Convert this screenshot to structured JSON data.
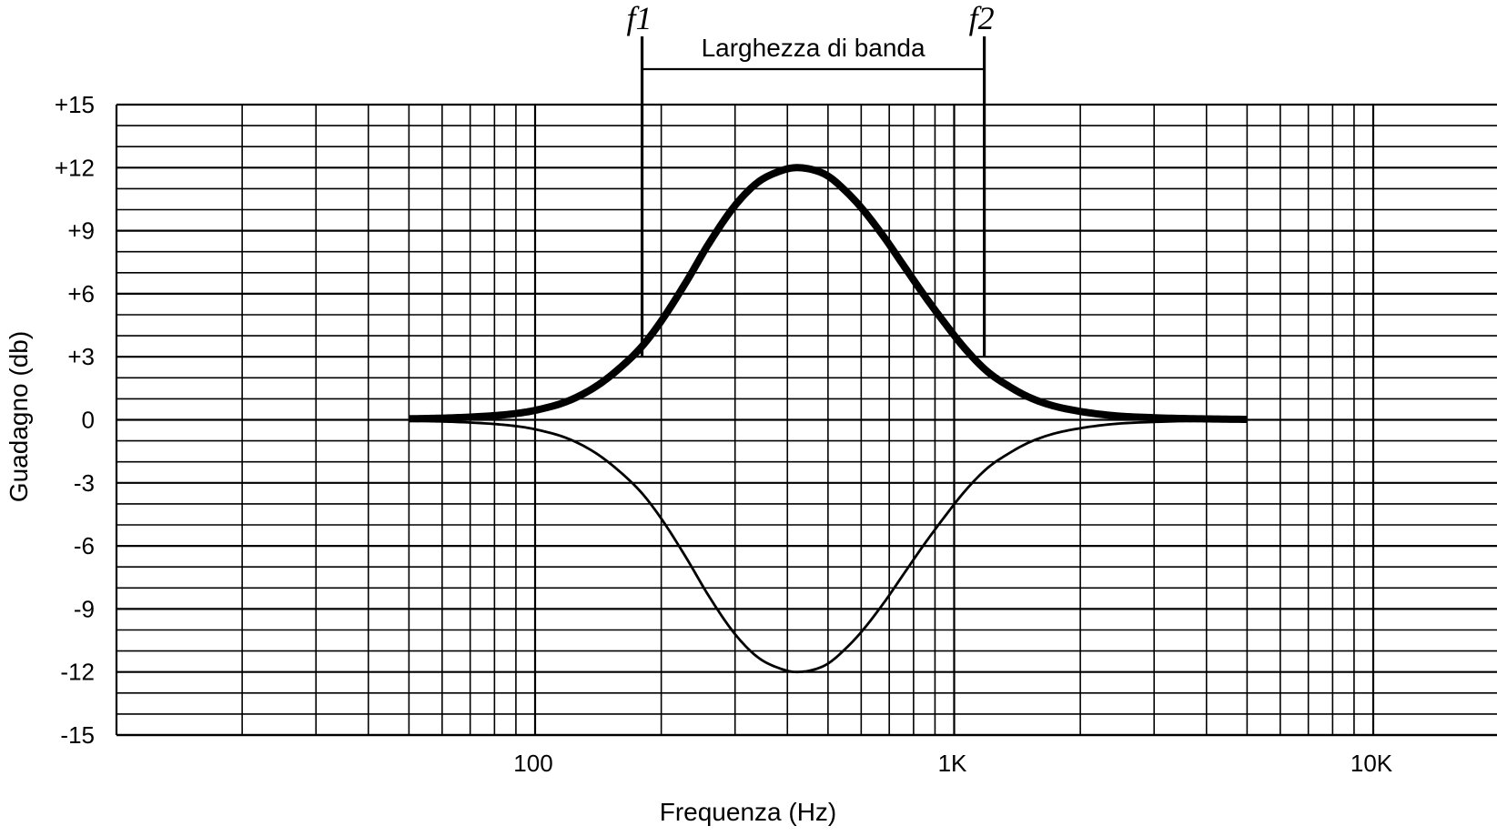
{
  "chart_data": {
    "type": "line",
    "title": "",
    "xlabel": "Frequenza (Hz)",
    "ylabel": "Guadagno (db)",
    "x_scale": "log",
    "xlim": [
      20,
      20000
    ],
    "ylim": [
      -15,
      15
    ],
    "grid": true,
    "x_tick_labels": [
      {
        "value": 100,
        "label": "100"
      },
      {
        "value": 1000,
        "label": "1K"
      },
      {
        "value": 10000,
        "label": "10K"
      }
    ],
    "y_tick_labels": [
      {
        "value": 15,
        "label": "+15"
      },
      {
        "value": 12,
        "label": "+12"
      },
      {
        "value": 9,
        "label": "+9"
      },
      {
        "value": 6,
        "label": "+6"
      },
      {
        "value": 3,
        "label": "+3"
      },
      {
        "value": 0,
        "label": "0"
      },
      {
        "value": -3,
        "label": "-3"
      },
      {
        "value": -6,
        "label": "-6"
      },
      {
        "value": -9,
        "label": "-9"
      },
      {
        "value": -12,
        "label": "-12"
      },
      {
        "value": -15,
        "label": "-15"
      }
    ],
    "series": [
      {
        "style": "thick",
        "x": [
          50,
          60,
          70,
          80,
          90,
          100,
          120,
          140,
          160,
          180,
          200,
          230,
          260,
          300,
          340,
          380,
          420,
          460,
          500,
          550,
          600,
          680,
          760,
          850,
          950,
          1060,
          1200,
          1350,
          1500,
          1700,
          2000,
          2400,
          3000,
          3800,
          5000
        ],
        "y": [
          0.05,
          0.08,
          0.13,
          0.2,
          0.3,
          0.45,
          0.9,
          1.6,
          2.5,
          3.5,
          4.7,
          6.6,
          8.4,
          10.2,
          11.3,
          11.8,
          12.0,
          11.9,
          11.6,
          10.9,
          10.1,
          8.7,
          7.3,
          5.9,
          4.6,
          3.4,
          2.3,
          1.6,
          1.1,
          0.7,
          0.4,
          0.2,
          0.1,
          0.05,
          0.02
        ]
      },
      {
        "style": "thin",
        "x": [
          50,
          60,
          70,
          80,
          90,
          100,
          120,
          140,
          160,
          180,
          200,
          230,
          260,
          300,
          340,
          380,
          420,
          460,
          500,
          550,
          600,
          680,
          760,
          850,
          950,
          1060,
          1200,
          1350,
          1500,
          1700,
          2000,
          2400,
          3000,
          3800,
          5000
        ],
        "y": [
          -0.05,
          -0.08,
          -0.13,
          -0.2,
          -0.3,
          -0.45,
          -0.9,
          -1.6,
          -2.5,
          -3.5,
          -4.7,
          -6.6,
          -8.4,
          -10.2,
          -11.3,
          -11.8,
          -12.0,
          -11.9,
          -11.6,
          -10.9,
          -10.1,
          -8.7,
          -7.3,
          -5.9,
          -4.6,
          -3.4,
          -2.3,
          -1.6,
          -1.1,
          -0.7,
          -0.4,
          -0.2,
          -0.1,
          -0.05,
          -0.02
        ]
      }
    ],
    "annotations": {
      "f1": {
        "label": "f1",
        "x": 180,
        "y_from": 3,
        "y_to": 15
      },
      "f2": {
        "label": "f2",
        "x": 1180,
        "y_from": 3,
        "y_to": 15
      },
      "bandwidth_label": "Larghezza di banda"
    }
  }
}
